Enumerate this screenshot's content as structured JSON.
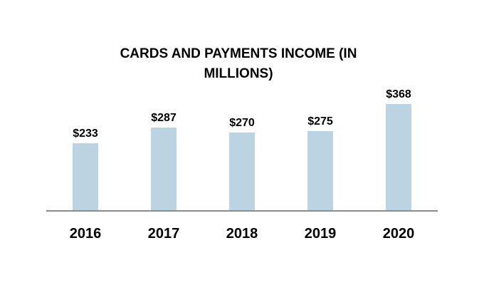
{
  "chart_data": {
    "type": "bar",
    "title": "CARDS AND PAYMENTS INCOME (IN MILLIONS)",
    "categories": [
      "2016",
      "2017",
      "2018",
      "2019",
      "2020"
    ],
    "values": [
      233,
      287,
      270,
      275,
      368
    ],
    "data_labels": [
      "$233",
      "$287",
      "$270",
      "$275",
      "$368"
    ],
    "xlabel": "",
    "ylabel": "",
    "ylim": [
      0,
      368
    ],
    "grid": false,
    "legend": "none",
    "bar_color": "#bcd4e1",
    "axis_color": "#8c8c8c"
  }
}
